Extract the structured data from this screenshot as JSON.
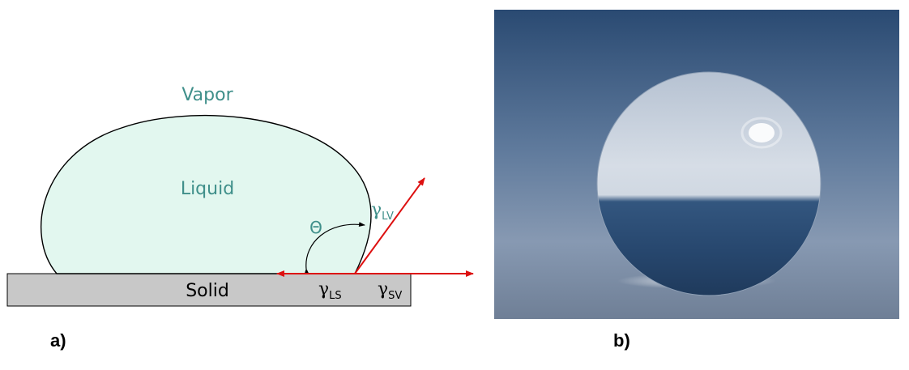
{
  "panel_a": {
    "vapor": "Vapor",
    "liquid": "Liquid",
    "solid": "Solid",
    "theta": "Θ",
    "gamma_lv": {
      "symbol": "γ",
      "sub": "LV"
    },
    "gamma_ls": {
      "symbol": "γ",
      "sub": "LS"
    },
    "gamma_sv": {
      "symbol": "γ",
      "sub": "SV"
    },
    "label": "a)"
  },
  "panel_b": {
    "label": "b)"
  },
  "colors": {
    "liquid_fill": "#e2f7ef",
    "text_teal": "#3f8f8a",
    "solid_fill": "#c8c8c8",
    "arrow_red": "#dd1010"
  }
}
